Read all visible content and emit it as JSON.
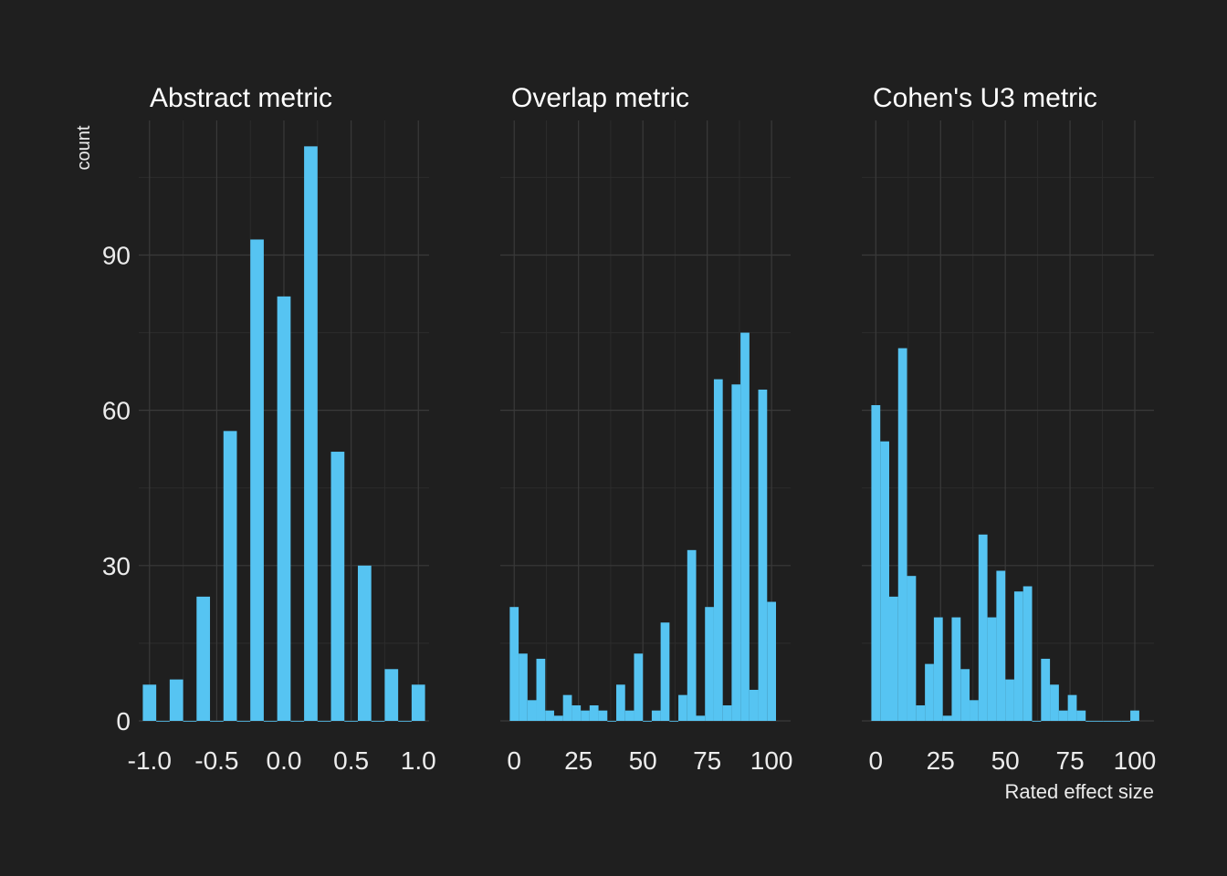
{
  "chart_data": [
    {
      "type": "bar",
      "title": "Abstract metric",
      "xlabel": "",
      "ylabel": "count",
      "xlim": [
        -1.08,
        1.08
      ],
      "ylim": [
        0,
        116
      ],
      "bin_width": 0.1,
      "x_ticks": [
        -1.0,
        -0.5,
        0.0,
        0.5,
        1.0
      ],
      "x_tick_labels": [
        "-1.0",
        "-0.5",
        "0.0",
        "0.5",
        "1.0"
      ],
      "y_ticks": [
        0,
        30,
        60,
        90
      ],
      "y_tick_labels": [
        "0",
        "30",
        "60",
        "90"
      ],
      "x": [
        -1.0,
        -0.9,
        -0.8,
        -0.7,
        -0.6,
        -0.5,
        -0.4,
        -0.3,
        -0.2,
        -0.1,
        0.0,
        0.1,
        0.2,
        0.3,
        0.4,
        0.5,
        0.6,
        0.7,
        0.8,
        0.9,
        1.0
      ],
      "values": [
        7,
        0,
        8,
        0,
        24,
        0,
        56,
        0,
        93,
        0,
        82,
        0,
        111,
        0,
        52,
        0,
        30,
        0,
        10,
        0,
        7
      ],
      "color": "#56c4f2"
    },
    {
      "type": "bar",
      "title": "Overlap metric",
      "xlabel": "",
      "ylabel": "",
      "xlim": [
        -5.4,
        107.4
      ],
      "ylim": [
        0,
        116
      ],
      "bin_width": 3.45,
      "x_ticks": [
        0,
        25,
        50,
        75,
        100
      ],
      "x_tick_labels": [
        "0",
        "25",
        "50",
        "75",
        "100"
      ],
      "y_ticks": [
        0,
        30,
        60,
        90
      ],
      "x": [
        0,
        3.45,
        6.9,
        10.34,
        13.79,
        17.24,
        20.69,
        24.14,
        27.59,
        31.03,
        34.48,
        37.93,
        41.38,
        44.83,
        48.28,
        51.72,
        55.17,
        58.62,
        62.07,
        65.52,
        68.97,
        72.41,
        75.86,
        79.31,
        82.76,
        86.21,
        89.66,
        93.1,
        96.55,
        100.0
      ],
      "values": [
        22,
        13,
        4,
        12,
        2,
        1,
        5,
        3,
        2,
        3,
        2,
        0,
        7,
        2,
        13,
        0,
        2,
        19,
        0,
        5,
        33,
        1,
        22,
        66,
        3,
        65,
        75,
        6,
        64,
        23
      ],
      "color": "#56c4f2"
    },
    {
      "type": "bar",
      "title": "Cohen's U3 metric",
      "xlabel": "Rated effect size",
      "ylabel": "",
      "xlim": [
        -5.4,
        107.4
      ],
      "ylim": [
        0,
        116
      ],
      "bin_width": 3.45,
      "x_ticks": [
        0,
        25,
        50,
        75,
        100
      ],
      "x_tick_labels": [
        "0",
        "25",
        "50",
        "75",
        "100"
      ],
      "y_ticks": [
        0,
        30,
        60,
        90
      ],
      "x": [
        0,
        3.45,
        6.9,
        10.34,
        13.79,
        17.24,
        20.69,
        24.14,
        27.59,
        31.03,
        34.48,
        37.93,
        41.38,
        44.83,
        48.28,
        51.72,
        55.17,
        58.62,
        62.07,
        65.52,
        68.97,
        72.41,
        75.86,
        79.31,
        82.76,
        86.21,
        89.66,
        93.1,
        96.55,
        100.0
      ],
      "values": [
        61,
        54,
        24,
        72,
        28,
        3,
        11,
        20,
        1,
        20,
        10,
        4,
        36,
        20,
        29,
        8,
        25,
        26,
        0,
        12,
        7,
        2,
        5,
        2,
        0,
        0,
        0,
        0,
        0,
        2
      ],
      "color": "#56c4f2"
    }
  ]
}
